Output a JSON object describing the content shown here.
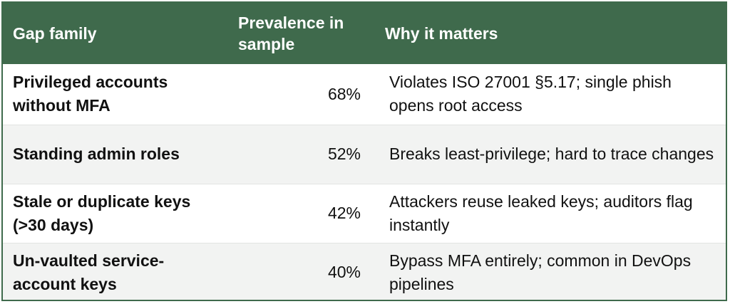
{
  "table": {
    "headers": {
      "family": "Gap family",
      "prevalence": "Prevalence in sample",
      "why": "Why it matters"
    },
    "rows": [
      {
        "family": "Privileged accounts without MFA",
        "prevalence": "68%",
        "why": "Violates ISO 27001 §5.17; single phish opens root access"
      },
      {
        "family": "Standing admin roles",
        "prevalence": "52%",
        "why": "Breaks least-privilege; hard to trace changes"
      },
      {
        "family": "Stale or duplicate keys (>30 days)",
        "prevalence": "42%",
        "why": "Attackers reuse leaked keys; auditors flag instantly"
      },
      {
        "family": "Un-vaulted service-account keys",
        "prevalence": "40%",
        "why": "Bypass MFA entirely; common in DevOps pipelines"
      }
    ],
    "colors": {
      "header_bg": "#3f6a4c",
      "header_text": "#ffffff",
      "alt_row_bg": "#f2f3f2"
    }
  }
}
